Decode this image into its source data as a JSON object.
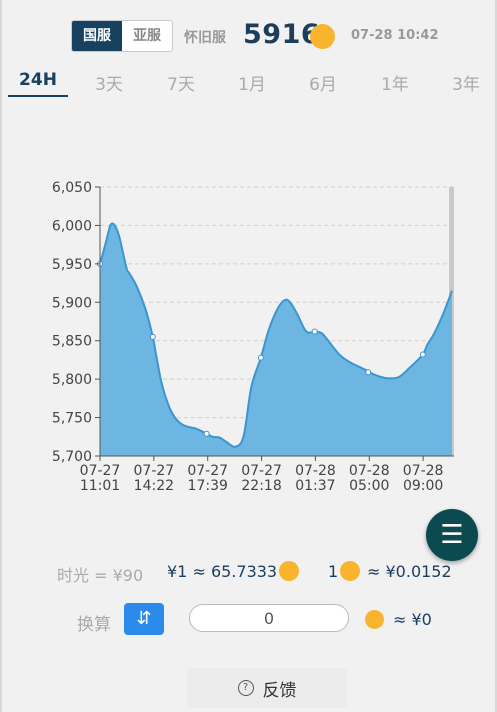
{
  "header": {
    "server_tabs": [
      {
        "label": "国服",
        "active": true
      },
      {
        "label": "亚服",
        "active": false
      }
    ],
    "server_label": "怀旧服",
    "price": "5916",
    "timestamp": "07-28 10:42"
  },
  "range_tabs": [
    {
      "label": "24H",
      "active": true
    },
    {
      "label": "3天"
    },
    {
      "label": "7天"
    },
    {
      "label": "1月"
    },
    {
      "label": "6月"
    },
    {
      "label": "1年"
    },
    {
      "label": "3年"
    }
  ],
  "chart_data": {
    "type": "area",
    "title": "",
    "xlabel": "",
    "ylabel": "",
    "ylim": [
      5700,
      6050
    ],
    "y_ticks": [
      5700,
      5750,
      5800,
      5850,
      5900,
      5950,
      6000,
      6050
    ],
    "y_tick_labels": [
      "5,700",
      "5,750",
      "5,800",
      "5,850",
      "5,900",
      "5,950",
      "6,000",
      "6,050"
    ],
    "x_tick_labels": [
      [
        "07-27",
        "11:01"
      ],
      [
        "07-27",
        "14:22"
      ],
      [
        "07-27",
        "17:39"
      ],
      [
        "07-27",
        "22:18"
      ],
      [
        "07-28",
        "01:37"
      ],
      [
        "07-28",
        "05:00"
      ],
      [
        "07-28",
        "09:00"
      ]
    ],
    "x_range": [
      0,
      100
    ],
    "x_tick_positions": [
      0,
      15.3,
      30.6,
      45.9,
      61.2,
      76.5,
      91.8
    ],
    "series": [
      {
        "color": "#3a95d1",
        "fill": "#6cb6e1",
        "points": [
          [
            0,
            5950
          ],
          [
            1.5,
            5975
          ],
          [
            2.6,
            5995
          ],
          [
            3.2,
            6002
          ],
          [
            4.2,
            6000
          ],
          [
            5.5,
            5985
          ],
          [
            7.5,
            5945
          ],
          [
            8.3,
            5938
          ],
          [
            10.5,
            5920
          ],
          [
            13,
            5890
          ],
          [
            15,
            5855
          ],
          [
            16,
            5830
          ],
          [
            17.5,
            5795
          ],
          [
            19.3,
            5768
          ],
          [
            21,
            5752
          ],
          [
            23,
            5742
          ],
          [
            25,
            5738
          ],
          [
            27,
            5736
          ],
          [
            29,
            5732
          ],
          [
            30.3,
            5729
          ],
          [
            32,
            5725
          ],
          [
            34,
            5724
          ],
          [
            36,
            5718
          ],
          [
            38.5,
            5712
          ],
          [
            40.8,
            5726
          ],
          [
            43,
            5790
          ],
          [
            45.7,
            5828
          ],
          [
            48,
            5865
          ],
          [
            50.5,
            5892
          ],
          [
            52.5,
            5903
          ],
          [
            54,
            5900
          ],
          [
            56,
            5885
          ],
          [
            58.6,
            5862
          ],
          [
            61,
            5862
          ],
          [
            62.9,
            5860
          ],
          [
            64.5,
            5852
          ],
          [
            68,
            5832
          ],
          [
            71,
            5822
          ],
          [
            75,
            5813
          ],
          [
            77,
            5808
          ],
          [
            79,
            5804
          ],
          [
            82,
            5801
          ],
          [
            85,
            5803
          ],
          [
            88,
            5815
          ],
          [
            91.7,
            5832
          ],
          [
            93,
            5845
          ],
          [
            95,
            5860
          ],
          [
            97.5,
            5885
          ],
          [
            100,
            5915
          ]
        ],
        "markers": [
          [
            0,
            5950
          ],
          [
            15,
            5855
          ],
          [
            30.3,
            5729
          ],
          [
            45.7,
            5828
          ],
          [
            61,
            5862
          ],
          [
            76.2,
            5809
          ],
          [
            91.7,
            5832
          ]
        ]
      }
    ]
  },
  "rates": {
    "left": "时光 = ¥90",
    "mid": "¥1 ≈ 65.7333",
    "right_prefix": "1",
    "right": "≈ ¥0.0152"
  },
  "convert": {
    "label": "换算",
    "swap_icon": "⇵",
    "input_value": "0",
    "result": "≈ ¥0"
  },
  "feedback": {
    "icon": "?",
    "label": "反馈"
  },
  "colors": {
    "brand_dark": "#17415f",
    "coin": "#f8b42c",
    "fab": "#0b4a4e",
    "swap_button": "#2b8bea"
  }
}
